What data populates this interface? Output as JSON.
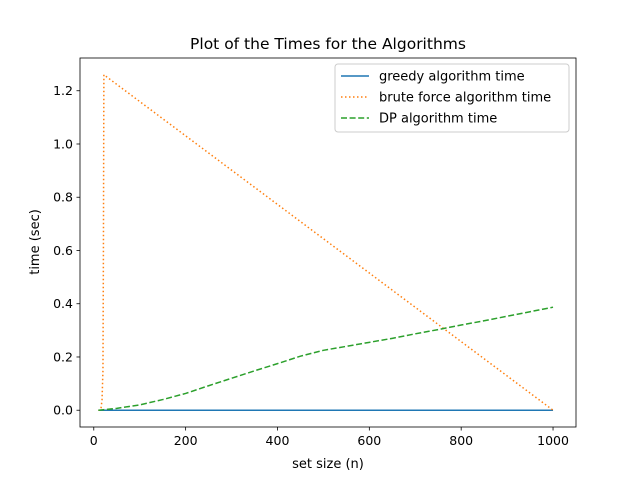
{
  "chart_data": {
    "type": "line",
    "title": "Plot of the Times for the Algorithms",
    "xlabel": "set size (n)",
    "ylabel": "time (sec)",
    "xlim": [
      -30,
      1050
    ],
    "ylim": [
      -0.063,
      1.323
    ],
    "xticks": [
      0,
      200,
      400,
      600,
      800,
      1000
    ],
    "yticks": [
      0.0,
      0.2,
      0.4,
      0.6,
      0.8,
      1.0,
      1.2
    ],
    "xtick_labels": [
      "0",
      "200",
      "400",
      "600",
      "800",
      "1000"
    ],
    "ytick_labels": [
      "0.0",
      "0.2",
      "0.4",
      "0.6",
      "0.8",
      "1.0",
      "1.2"
    ],
    "legend_position": "top-right",
    "grid": false,
    "series": [
      {
        "name": "greedy algorithm time",
        "color": "#1f77b4",
        "style": "solid",
        "x": [
          10,
          100,
          200,
          300,
          400,
          500,
          600,
          700,
          800,
          900,
          1000
        ],
        "y": [
          0.0,
          0.0,
          0.0,
          0.0,
          0.0,
          0.0,
          0.0,
          0.0,
          0.0,
          0.0,
          0.0
        ]
      },
      {
        "name": "brute force algorithm time",
        "color": "#ff7f0e",
        "style": "dotted",
        "x": [
          10,
          12,
          14,
          16,
          18,
          20,
          21,
          22,
          1000
        ],
        "y": [
          0.0,
          0.0,
          0.0,
          0.01,
          0.04,
          0.15,
          0.6,
          1.26,
          0.0
        ]
      },
      {
        "name": "DP algorithm time",
        "color": "#2ca02c",
        "style": "dashed",
        "x": [
          10,
          50,
          100,
          150,
          200,
          250,
          300,
          350,
          400,
          450,
          500,
          550,
          600,
          650,
          700,
          750,
          800,
          850,
          900,
          950,
          1000
        ],
        "y": [
          0.0,
          0.007,
          0.02,
          0.04,
          0.063,
          0.092,
          0.12,
          0.148,
          0.175,
          0.203,
          0.225,
          0.24,
          0.255,
          0.27,
          0.287,
          0.303,
          0.32,
          0.336,
          0.353,
          0.37,
          0.387
        ]
      }
    ]
  }
}
